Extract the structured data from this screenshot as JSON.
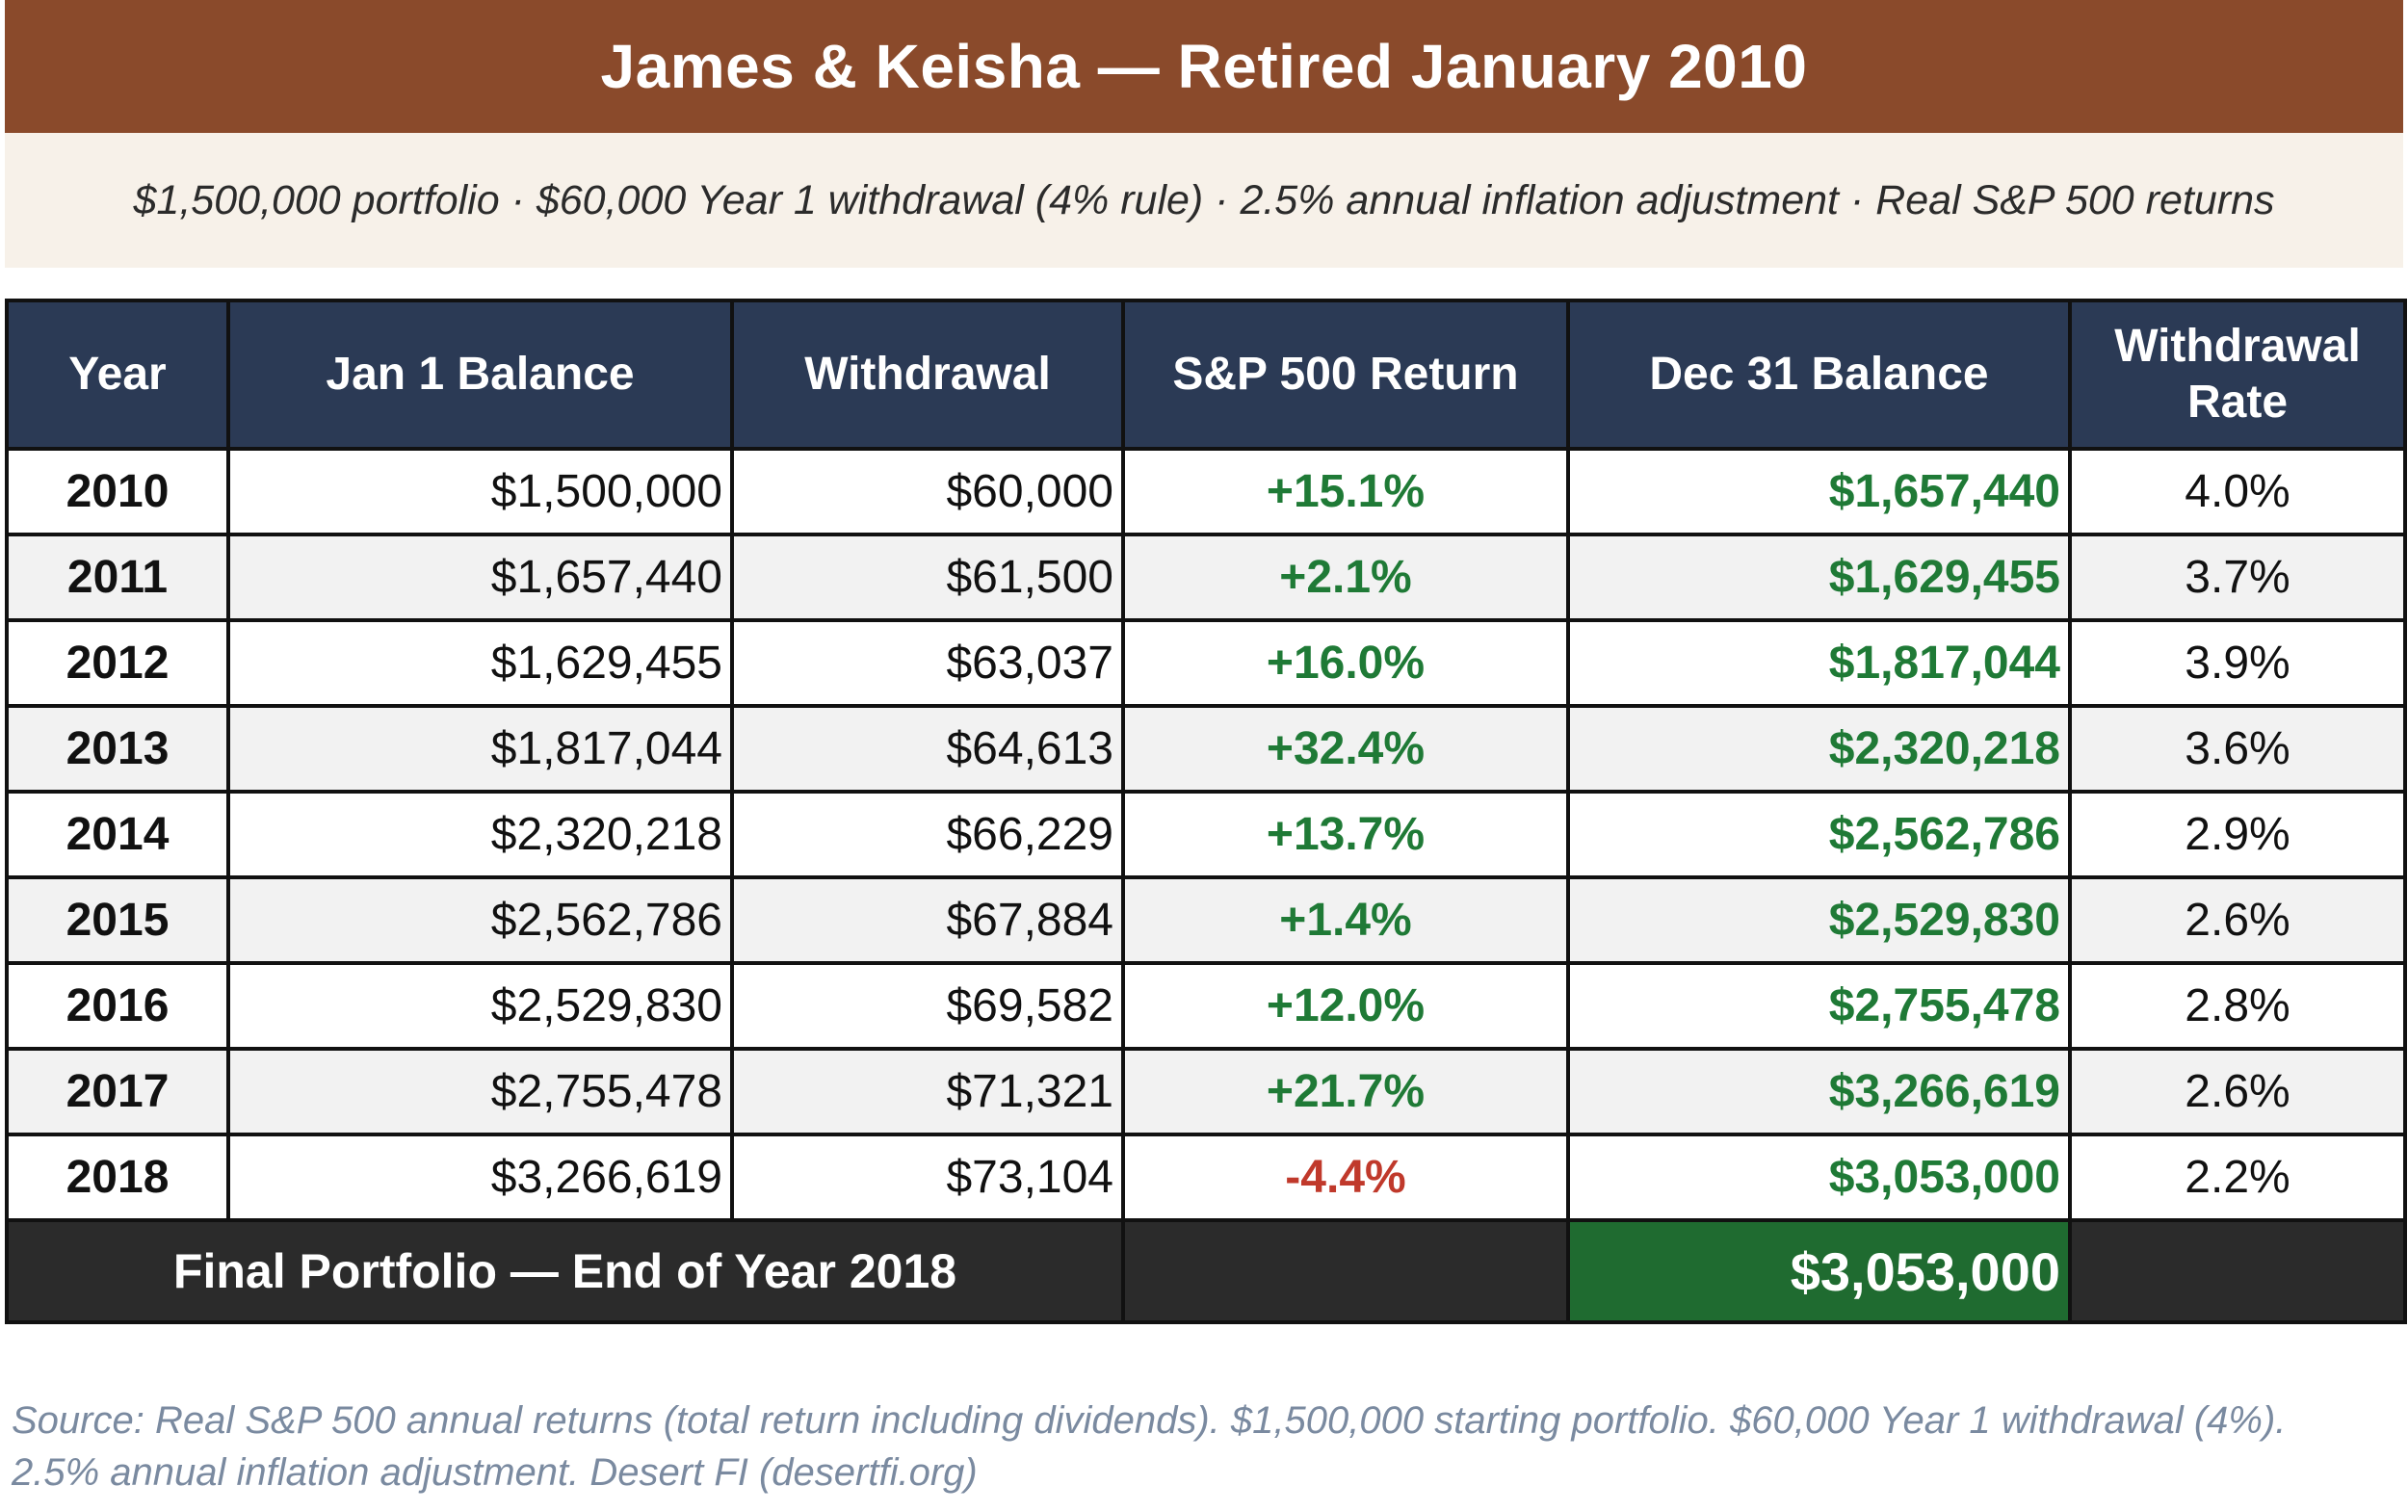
{
  "title": "James & Keisha — Retired January 2010",
  "subtitle": "$1,500,000 portfolio · $60,000 Year 1 withdrawal (4% rule) · 2.5% annual inflation adjustment · Real S&P 500 returns",
  "table": {
    "headers": {
      "year": "Year",
      "jan_balance": "Jan 1 Balance",
      "withdrawal": "Withdrawal",
      "sp_return": "S&P 500 Return",
      "dec_balance": "Dec 31 Balance",
      "rate": "Withdrawal Rate"
    },
    "rows": [
      {
        "year": "2010",
        "jan": "$1,500,000",
        "wd": "$60,000",
        "ret": "+15.1%",
        "dec": "$1,657,440",
        "rate": "4.0%"
      },
      {
        "year": "2011",
        "jan": "$1,657,440",
        "wd": "$61,500",
        "ret": "+2.1%",
        "dec": "$1,629,455",
        "rate": "3.7%"
      },
      {
        "year": "2012",
        "jan": "$1,629,455",
        "wd": "$63,037",
        "ret": "+16.0%",
        "dec": "$1,817,044",
        "rate": "3.9%"
      },
      {
        "year": "2013",
        "jan": "$1,817,044",
        "wd": "$64,613",
        "ret": "+32.4%",
        "dec": "$2,320,218",
        "rate": "3.6%"
      },
      {
        "year": "2014",
        "jan": "$2,320,218",
        "wd": "$66,229",
        "ret": "+13.7%",
        "dec": "$2,562,786",
        "rate": "2.9%"
      },
      {
        "year": "2015",
        "jan": "$2,562,786",
        "wd": "$67,884",
        "ret": "+1.4%",
        "dec": "$2,529,830",
        "rate": "2.6%"
      },
      {
        "year": "2016",
        "jan": "$2,529,830",
        "wd": "$69,582",
        "ret": "+12.0%",
        "dec": "$2,755,478",
        "rate": "2.8%"
      },
      {
        "year": "2017",
        "jan": "$2,755,478",
        "wd": "$71,321",
        "ret": "+21.7%",
        "dec": "$3,266,619",
        "rate": "2.6%"
      },
      {
        "year": "2018",
        "jan": "$3,266,619",
        "wd": "$73,104",
        "ret": "-4.4%",
        "dec": "$3,053,000",
        "rate": "2.2%"
      }
    ],
    "final": {
      "label": "Final Portfolio — End of Year 2018",
      "value": "$3,053,000"
    }
  },
  "source_line1": "Source: Real S&P 500 annual returns (total return including dividends). $1,500,000 starting portfolio. $60,000 Year 1 withdrawal (4%).",
  "source_line2": "2.5% annual inflation adjustment. Desert FI (desertfi.org)",
  "colors": {
    "title_bg": "#8a4a2b",
    "subtitle_bg": "#f7f1e9",
    "header_bg": "#2b3a55",
    "positive": "#1f7a36",
    "negative": "#c0392b",
    "final_bg": "#2b2b2b",
    "final_value_bg": "#1f6b30",
    "source_text": "#7a8aa0"
  }
}
